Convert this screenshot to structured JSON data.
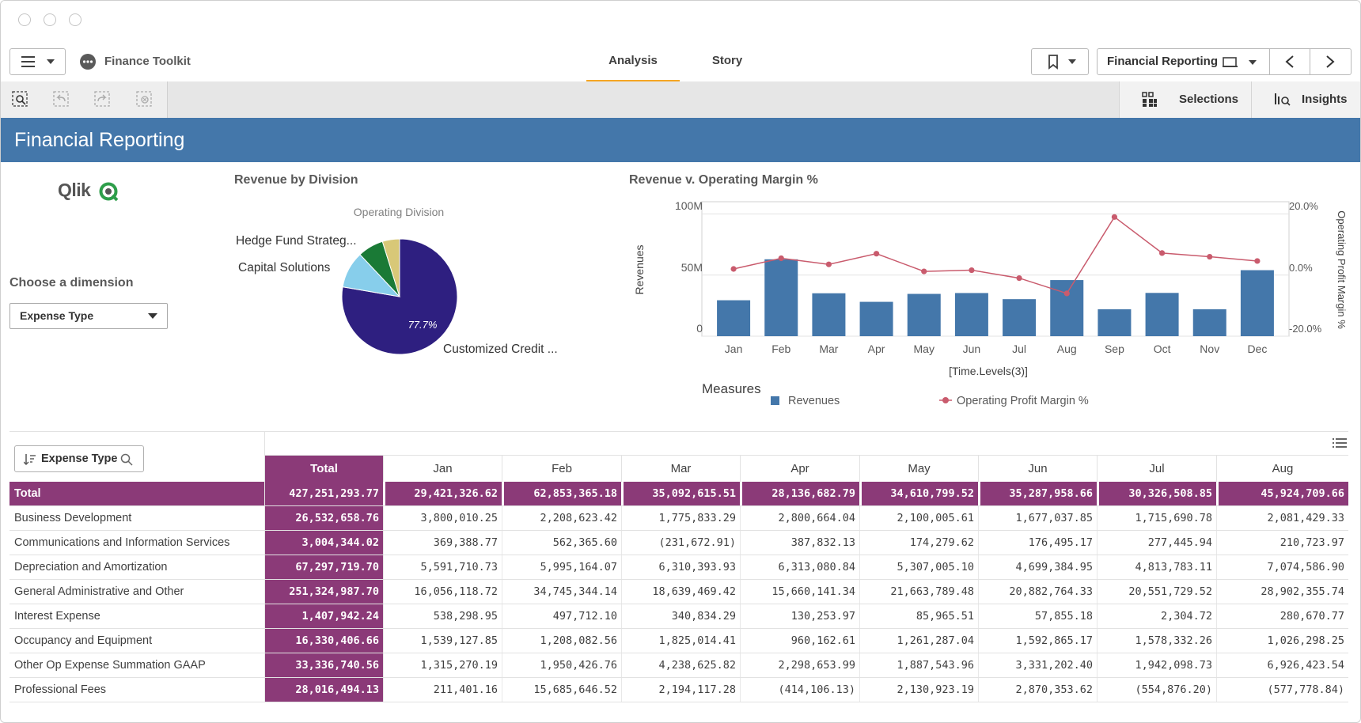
{
  "app": {
    "title": "Finance Toolkit"
  },
  "tabs": [
    {
      "label": "Analysis",
      "active": true
    },
    {
      "label": "Story",
      "active": false
    }
  ],
  "sheet_selector": {
    "label": "Financial Reporting"
  },
  "selections_label": "Selections",
  "insights_label": "Insights",
  "sheet_title": "Financial Reporting",
  "logo_text": "Qlik",
  "dimension": {
    "heading": "Choose a dimension",
    "selected": "Expense Type"
  },
  "pie": {
    "title": "Revenue by Division",
    "legend_title": "Operating Division",
    "slice_label_main": "77.7%",
    "labels": [
      "Hedge Fund Strateg...",
      "Capital Solutions",
      "Customized Credit ..."
    ]
  },
  "combo": {
    "title": "Revenue v. Operating Margin %",
    "xlabel": "[Time.Levels(3)]",
    "ylabel_left": "Revenues",
    "ylabel_right": "Operating Profit Margin %",
    "left_ticks": [
      "100M",
      "50M",
      "0"
    ],
    "right_ticks": [
      "20.0%",
      "0.0%",
      "-20.0%"
    ],
    "legend_title": "Measures",
    "legend_items": [
      "Revenues",
      "Operating Profit Margin %"
    ]
  },
  "colors": {
    "banner": "#4477aa",
    "bar": "#4477aa",
    "line": "#c95b6d",
    "total": "#8b3a78",
    "pie_main": "#2e1f80",
    "pie_blue": "#87ceeb",
    "pie_green": "#1a7a36",
    "pie_tan": "#d8c878"
  },
  "chart_data": [
    {
      "type": "pie",
      "title": "Revenue by Division",
      "legend_title": "Operating Division",
      "slices": [
        {
          "name": "Customized Credit ...",
          "value": 77.7
        },
        {
          "name": "Capital Solutions",
          "value": 10.3
        },
        {
          "name": "Hedge Fund Strateg...",
          "value": 7.2
        },
        {
          "name": "",
          "value": 4.8
        }
      ]
    },
    {
      "type": "bar",
      "title": "Revenue v. Operating Margin %",
      "categories": [
        "Jan",
        "Feb",
        "Mar",
        "Apr",
        "May",
        "Jun",
        "Jul",
        "Aug",
        "Sep",
        "Oct",
        "Nov",
        "Dec"
      ],
      "series": [
        {
          "name": "Revenues",
          "type": "bar",
          "axis": "left",
          "values": [
            29.4,
            62.9,
            35.1,
            28.1,
            34.6,
            35.3,
            30.3,
            45.9,
            22.0,
            35.4,
            22.0,
            54.0
          ]
        },
        {
          "name": "Operating Profit Margin %",
          "type": "line",
          "axis": "right",
          "values": [
            2.0,
            5.5,
            3.5,
            7.0,
            1.2,
            1.6,
            -1.0,
            -6.0,
            19.0,
            7.2,
            6.0,
            4.6
          ]
        }
      ],
      "ylim_left": [
        0,
        110
      ],
      "ylim_right": [
        -20,
        24
      ],
      "xlabel": "[Time.Levels(3)]"
    }
  ],
  "table": {
    "filter_label": "Expense Type",
    "total_header": "Total",
    "months": [
      "Jan",
      "Feb",
      "Mar",
      "Apr",
      "May",
      "Jun",
      "Jul",
      "Aug"
    ],
    "rows": [
      {
        "label": "Total",
        "total": "427,251,293.77",
        "values": [
          "29,421,326.62",
          "62,853,365.18",
          "35,092,615.51",
          "28,136,682.79",
          "34,610,799.52",
          "35,287,958.66",
          "30,326,508.85",
          "45,924,709.66"
        ]
      },
      {
        "label": "Business Development",
        "total": "26,532,658.76",
        "values": [
          "3,800,010.25",
          "2,208,623.42",
          "1,775,833.29",
          "2,800,664.04",
          "2,100,005.61",
          "1,677,037.85",
          "1,715,690.78",
          "2,081,429.33"
        ]
      },
      {
        "label": "Communications and Information Services",
        "total": "3,004,344.02",
        "values": [
          "369,388.77",
          "562,365.60",
          "(231,672.91)",
          "387,832.13",
          "174,279.62",
          "176,495.17",
          "277,445.94",
          "210,723.97"
        ]
      },
      {
        "label": "Depreciation and Amortization",
        "total": "67,297,719.70",
        "values": [
          "5,591,710.73",
          "5,995,164.07",
          "6,310,393.93",
          "6,313,080.84",
          "5,307,005.10",
          "4,699,384.95",
          "4,813,783.11",
          "7,074,586.90"
        ]
      },
      {
        "label": "General Administrative and Other",
        "total": "251,324,987.70",
        "values": [
          "16,056,118.72",
          "34,745,344.14",
          "18,639,469.42",
          "15,660,141.34",
          "21,663,789.48",
          "20,882,764.33",
          "20,551,729.52",
          "28,902,355.74"
        ]
      },
      {
        "label": "Interest Expense",
        "total": "1,407,942.24",
        "values": [
          "538,298.95",
          "497,712.10",
          "340,834.29",
          "130,253.97",
          "85,965.51",
          "57,855.18",
          "2,304.72",
          "280,670.77"
        ]
      },
      {
        "label": "Occupancy and Equipment",
        "total": "16,330,406.66",
        "values": [
          "1,539,127.85",
          "1,208,082.56",
          "1,825,014.41",
          "960,162.61",
          "1,261,287.04",
          "1,592,865.17",
          "1,578,332.26",
          "1,026,298.25"
        ]
      },
      {
        "label": "Other Op Expense Summation GAAP",
        "total": "33,336,740.56",
        "values": [
          "1,315,270.19",
          "1,950,426.76",
          "4,238,625.82",
          "2,298,653.99",
          "1,887,543.96",
          "3,331,202.40",
          "1,942,098.73",
          "6,926,423.54"
        ]
      },
      {
        "label": "Professional Fees",
        "total": "28,016,494.13",
        "values": [
          "211,401.16",
          "15,685,646.52",
          "2,194,117.28",
          "(414,106.13)",
          "2,130,923.19",
          "2,870,353.62",
          "(554,876.20)",
          "(577,778.84)"
        ]
      }
    ]
  }
}
